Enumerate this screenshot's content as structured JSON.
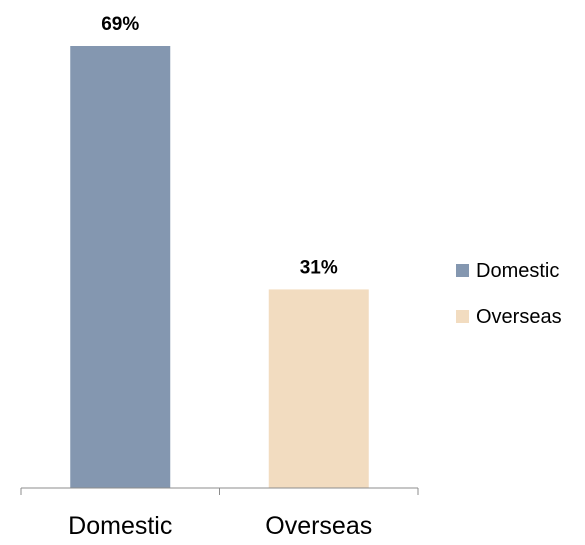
{
  "chart_data": {
    "type": "bar",
    "categories": [
      "Domestic",
      "Overseas"
    ],
    "values": [
      69,
      31
    ],
    "data_labels": [
      "69%",
      "31%"
    ],
    "colors": [
      "#8497b0",
      "#f2dcc0"
    ],
    "axis_color": "#8c8c8c",
    "ylim": [
      0,
      69
    ],
    "title": "",
    "xlabel": "",
    "ylabel": "",
    "grid": false,
    "legend": {
      "position": "right",
      "entries": [
        {
          "label": "Domestic",
          "color": "#8497b0"
        },
        {
          "label": "Overseas",
          "color": "#f2dcc0"
        }
      ]
    }
  }
}
